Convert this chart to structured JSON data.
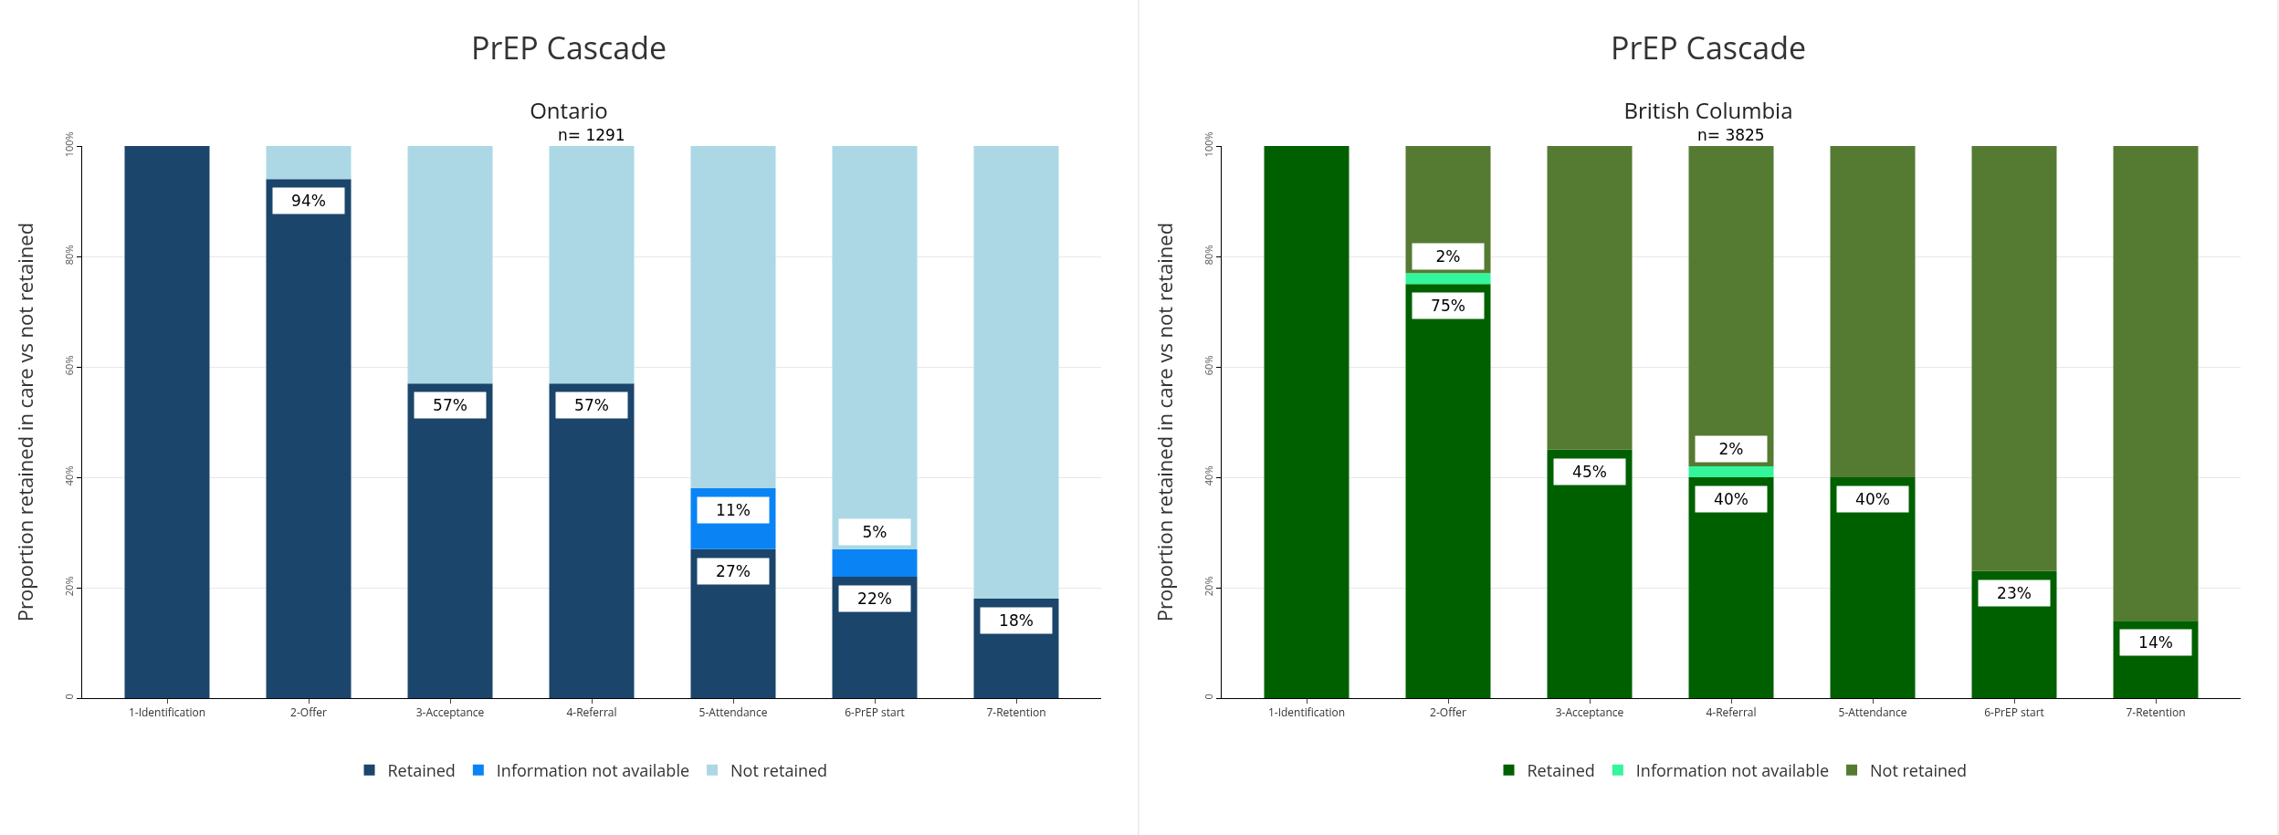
{
  "chart_data": [
    {
      "type": "bar",
      "title": "PrEP Cascade",
      "subtitle": "Ontario",
      "ylabel": "Proportion retained in care vs not retained",
      "annotations": [
        "n= 1291"
      ],
      "stacked": true,
      "grid": "y",
      "legend": "bottom",
      "categories": [
        "1-Identification",
        "2-Offer",
        "3-Acceptance",
        "4-Referral",
        "5-Attendance",
        "6-PrEP start",
        "7-Retention"
      ],
      "ylim": [
        0,
        100
      ],
      "yticks": [
        0,
        {
          "value": 20,
          "label": "20%"
        },
        {
          "value": 40,
          "label": "40%"
        },
        {
          "value": 60,
          "label": "60%"
        },
        {
          "value": 80,
          "label": "80%"
        },
        {
          "value": 100,
          "label": "100%"
        }
      ],
      "series": [
        {
          "name": "Retained",
          "color": "#1b456b",
          "values": [
            100,
            94,
            57,
            57,
            27,
            22,
            18
          ],
          "value_labels": [
            null,
            "94%",
            "57%",
            "57%",
            "27%",
            "22%",
            "18%"
          ]
        },
        {
          "name": "Information not available",
          "color": "#0a84f5",
          "values": [
            0,
            0,
            0,
            0,
            11,
            5,
            0
          ],
          "value_labels": [
            null,
            null,
            null,
            null,
            "11%",
            "5%",
            null
          ]
        },
        {
          "name": "Not retained",
          "color": "#acd8e6",
          "values": [
            0,
            6,
            43,
            43,
            62,
            73,
            82
          ]
        }
      ]
    },
    {
      "type": "bar",
      "title": "PrEP Cascade",
      "subtitle": "British Columbia",
      "ylabel": "Proportion retained in care vs not retained",
      "annotations": [
        "n= 3825"
      ],
      "stacked": true,
      "grid": "y",
      "legend": "bottom",
      "categories": [
        "1-Identification",
        "2-Offer",
        "3-Acceptance",
        "4-Referral",
        "5-Attendance",
        "6-PrEP start",
        "7-Retention"
      ],
      "ylim": [
        0,
        100
      ],
      "yticks": [
        0,
        {
          "value": 20,
          "label": "20%"
        },
        {
          "value": 40,
          "label": "40%"
        },
        {
          "value": 60,
          "label": "60%"
        },
        {
          "value": 80,
          "label": "80%"
        },
        {
          "value": 100,
          "label": "100%"
        }
      ],
      "series": [
        {
          "name": "Retained",
          "color": "#006000",
          "values": [
            100,
            75,
            45,
            40,
            40,
            23,
            14
          ],
          "value_labels": [
            null,
            "75%",
            "45%",
            "40%",
            "40%",
            "23%",
            "14%"
          ]
        },
        {
          "name": "Information not available",
          "color": "#33f59a",
          "values": [
            0,
            2,
            0,
            2,
            0,
            0,
            0
          ],
          "value_labels": [
            null,
            "2%",
            null,
            "2%",
            null,
            null,
            null
          ]
        },
        {
          "name": "Not retained",
          "color": "#557a32",
          "values": [
            0,
            23,
            55,
            58,
            60,
            77,
            86
          ]
        }
      ]
    }
  ]
}
